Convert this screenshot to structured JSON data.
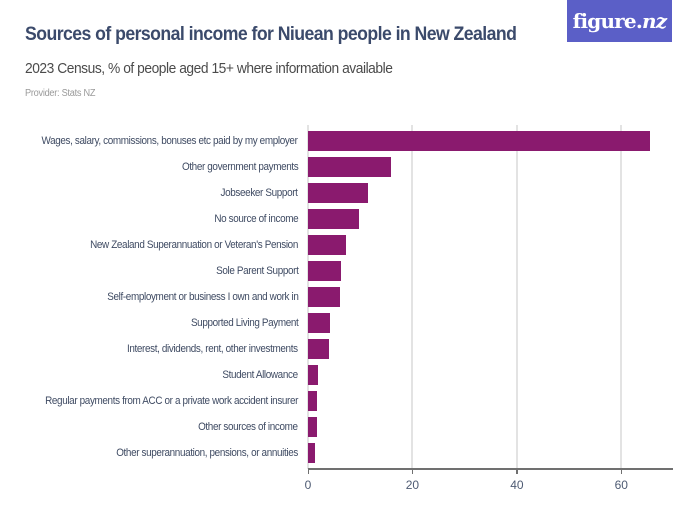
{
  "header": {
    "title": "Sources of personal income for Niuean people in New Zealand",
    "subtitle": "2023 Census, % of people aged 15+ where information available",
    "provider": "Provider: Stats NZ",
    "logo_main": "figure.",
    "logo_suffix": "nz"
  },
  "colors": {
    "bar": "#8a1a6e",
    "title": "#3b4a6b",
    "logo_bg": "#5b5fc7"
  },
  "chart_data": {
    "type": "bar",
    "orientation": "horizontal",
    "title": "Sources of personal income for Niuean people in New Zealand",
    "subtitle": "2023 Census, % of people aged 15+ where information available",
    "xlabel": "",
    "ylabel": "",
    "xlim": [
      0,
      70
    ],
    "xticks": [
      0,
      20,
      40,
      60
    ],
    "grid": true,
    "legend": null,
    "categories": [
      "Wages, salary, commissions, bonuses etc paid by my employer",
      "Other government payments",
      "Jobseeker Support",
      "No source of income",
      "New Zealand Superannuation or Veteran's Pension",
      "Sole Parent Support",
      "Self-employment or business I own and work in",
      "Supported Living Payment",
      "Interest, dividends, rent, other investments",
      "Student Allowance",
      "Regular payments from ACC or a private work accident insurer",
      "Other sources of income",
      "Other superannuation, pensions, or annuities"
    ],
    "values": [
      65.4,
      15.8,
      11.5,
      9.8,
      7.3,
      6.3,
      6.1,
      4.2,
      4.0,
      2.0,
      1.8,
      1.7,
      1.3
    ]
  }
}
